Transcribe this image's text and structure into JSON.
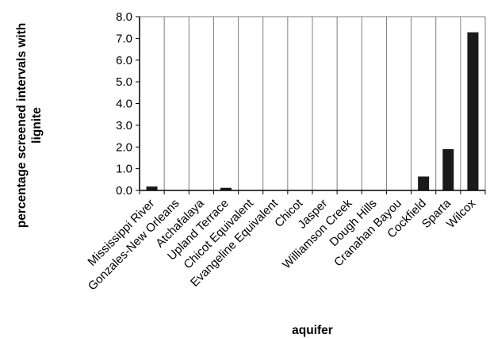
{
  "chart_data": {
    "type": "bar",
    "categories": [
      "Mississippi River",
      "Gonzales-New Orleans",
      "Atchafalaya",
      "Upland Terrace",
      "Chicot Equivalent",
      "Evangeline Equivalent",
      "Chicot",
      "Jasper",
      "Williamson Creek",
      "Dough Hills",
      "Cranahan Bayou",
      "Cockfield",
      "Sparta",
      "Wilcox"
    ],
    "values": [
      0.18,
      0,
      0,
      0.12,
      0,
      0,
      0,
      0,
      0,
      0,
      0,
      0.64,
      1.9,
      7.28
    ],
    "title": "",
    "xlabel": "aquifer",
    "ylabel_lines": [
      "percentage screened intervals with",
      "lignite"
    ],
    "ylim": [
      0,
      8
    ],
    "yticks": [
      "0.0",
      "1.0",
      "2.0",
      "3.0",
      "4.0",
      "5.0",
      "6.0",
      "7.0",
      "8.0"
    ],
    "grid": "vertical",
    "legend": "none",
    "colors": {
      "bar": "#1a1a1a",
      "grid": "#7f7f7f",
      "axis": "#000000"
    }
  }
}
